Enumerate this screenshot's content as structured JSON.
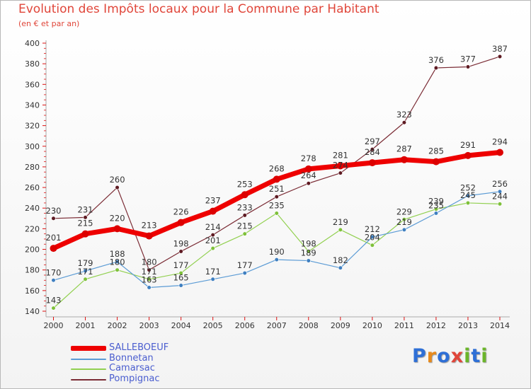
{
  "header": {
    "title": "Evolution des Impôts locaux pour la Commune par Habitant",
    "subtitle": "(en € et par an)"
  },
  "logo": {
    "text": "Proxiti",
    "letters": [
      "P",
      "r",
      "o",
      "x",
      "i",
      "t",
      "i"
    ]
  },
  "colors": {
    "title": "#e0463a",
    "legend_text": "#4a5dcf",
    "axis": "#aaaaaa",
    "tick_red": "#dd1111",
    "logo": [
      "#2e6fd6",
      "#e78a1c",
      "#2e6fd6",
      "#e0463a",
      "#6bb52a",
      "#2e6fd6",
      "#6bb52a"
    ]
  },
  "chart_data": {
    "type": "line",
    "title": "Evolution des Impôts locaux pour la Commune par Habitant",
    "subtitle": "(en € et par an)",
    "xlabel": "",
    "ylabel": "",
    "categories": [
      "2000",
      "2001",
      "2002",
      "2003",
      "2004",
      "2005",
      "2006",
      "2007",
      "2008",
      "2009",
      "2010",
      "2011",
      "2012",
      "2013",
      "2014"
    ],
    "ylim": [
      140,
      400
    ],
    "yticks": [
      140,
      160,
      180,
      200,
      220,
      240,
      260,
      280,
      300,
      320,
      340,
      360,
      380,
      400
    ],
    "grid": false,
    "legend_position": "bottom-left",
    "series": [
      {
        "name": "SALLEBOEUF",
        "color": "#ee0000",
        "marker_color": "#dd0000",
        "width": 7,
        "values": [
          201,
          215,
          220,
          213,
          226,
          237,
          253,
          268,
          278,
          281,
          284,
          287,
          285,
          291,
          294
        ]
      },
      {
        "name": "Bonnetan",
        "color": "#5b9bd5",
        "marker_color": "#3f7fc0",
        "width": 1.2,
        "values": [
          170,
          179,
          188,
          163,
          165,
          171,
          177,
          190,
          189,
          182,
          212,
          219,
          235,
          252,
          256
        ]
      },
      {
        "name": "Camarsac",
        "color": "#92d050",
        "marker_color": "#7ec03a",
        "width": 1.2,
        "values": [
          143,
          171,
          180,
          171,
          177,
          201,
          215,
          235,
          198,
          219,
          204,
          229,
          239,
          245,
          244
        ]
      },
      {
        "name": "Pompignac",
        "color": "#7b2c35",
        "marker_color": "#5e1a22",
        "width": 1.2,
        "values": [
          230,
          231,
          260,
          180,
          198,
          214,
          233,
          251,
          264,
          274,
          297,
          323,
          376,
          377,
          387
        ]
      }
    ],
    "point_labels": [
      {
        "series": "SALLEBOEUF",
        "labels": [
          "201",
          "215",
          "220",
          "213",
          "226",
          "237",
          "253",
          "268",
          "278",
          "281",
          "284",
          "287",
          "285",
          "291",
          "294"
        ]
      },
      {
        "series": "Bonnetan",
        "labels": [
          "170",
          "179",
          "188",
          "163",
          "165",
          "171",
          "177",
          "190",
          "189",
          "182",
          "212",
          "219",
          "235",
          "252",
          "256"
        ]
      },
      {
        "series": "Camarsac",
        "labels": [
          "143",
          "171",
          "180",
          "171",
          "177",
          "201",
          "215",
          "235",
          "198",
          "219",
          "204",
          "229",
          "239",
          "245",
          "244"
        ]
      },
      {
        "series": "Pompignac",
        "labels": [
          "230",
          "231",
          "260",
          "180",
          "198",
          "214",
          "233",
          "251",
          "264",
          "274",
          "297",
          "323",
          "376",
          "377",
          "387"
        ]
      }
    ]
  }
}
